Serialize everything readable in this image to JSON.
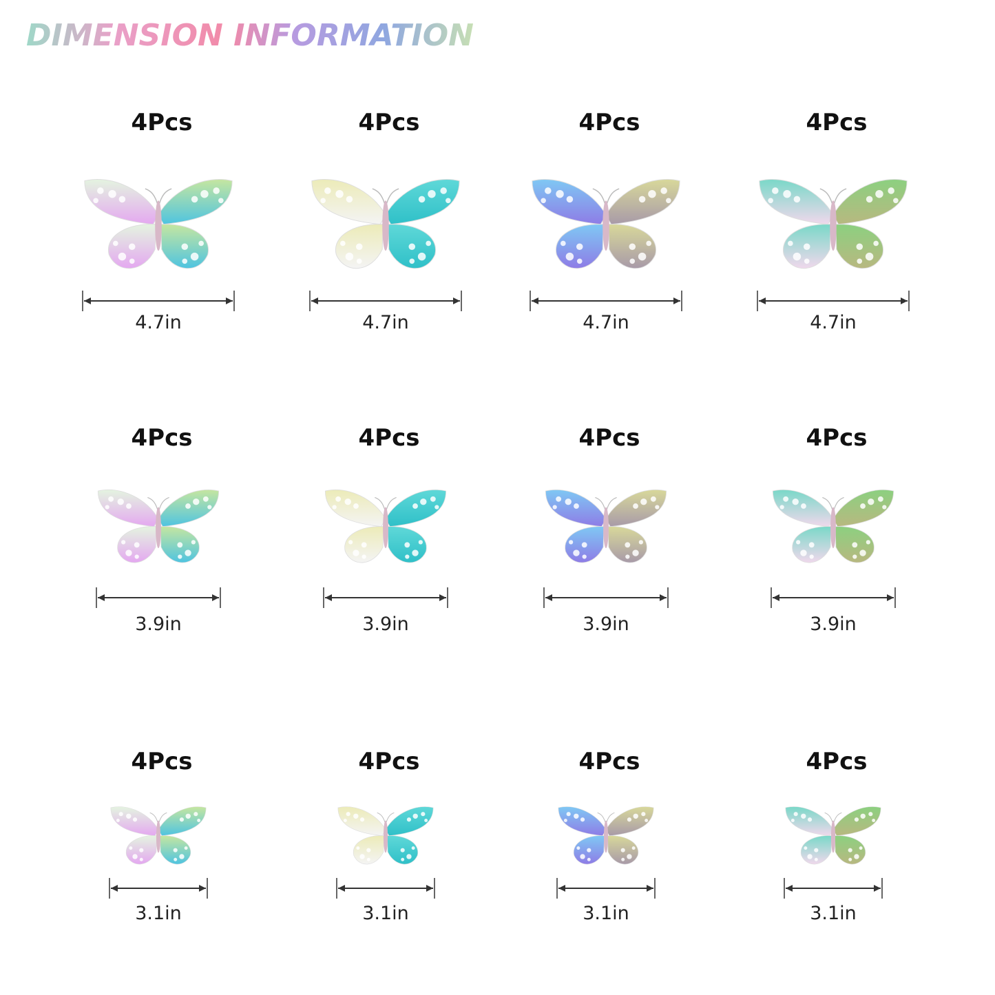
{
  "title": "DIMENSION INFORMATION",
  "rows": [
    {
      "items": [
        {
          "count": "4Pcs",
          "size": "4.7in"
        },
        {
          "count": "4Pcs",
          "size": "4.7in"
        },
        {
          "count": "4Pcs",
          "size": "4.7in"
        },
        {
          "count": "4Pcs",
          "size": "4.7in"
        }
      ]
    },
    {
      "items": [
        {
          "count": "4Pcs",
          "size": "3.9in"
        },
        {
          "count": "4Pcs",
          "size": "3.9in"
        },
        {
          "count": "4Pcs",
          "size": "3.9in"
        },
        {
          "count": "4Pcs",
          "size": "3.9in"
        }
      ]
    },
    {
      "items": [
        {
          "count": "4Pcs",
          "size": "3.1in"
        },
        {
          "count": "4Pcs",
          "size": "3.1in"
        },
        {
          "count": "4Pcs",
          "size": "3.1in"
        },
        {
          "count": "4Pcs",
          "size": "3.1in"
        }
      ]
    }
  ]
}
